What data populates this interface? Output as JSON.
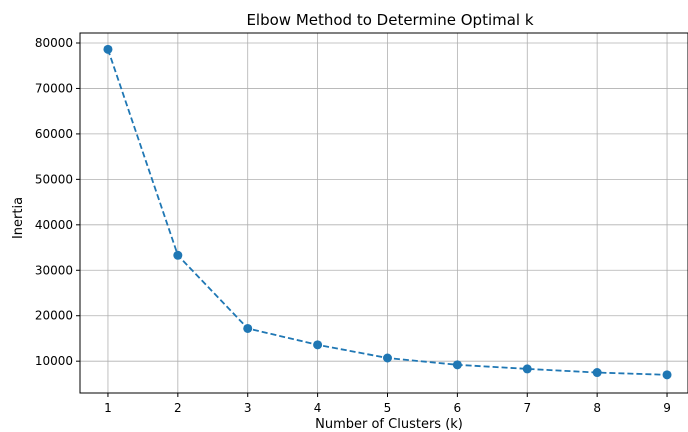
{
  "chart_data": {
    "type": "line",
    "title": "Elbow Method to Determine Optimal k",
    "xlabel": "Number of Clusters (k)",
    "ylabel": "Inertia",
    "x": [
      1,
      2,
      3,
      4,
      5,
      6,
      7,
      8,
      9
    ],
    "series": [
      {
        "values": [
          78600,
          33300,
          17200,
          13600,
          10700,
          9200,
          8300,
          7500,
          7000
        ],
        "color": "#1f77b4",
        "linestyle": "dashed",
        "marker": "circle"
      }
    ],
    "xticks": [
      1,
      2,
      3,
      4,
      5,
      6,
      7,
      8,
      9
    ],
    "yticks": [
      10000,
      20000,
      30000,
      40000,
      50000,
      60000,
      70000,
      80000
    ],
    "xlim": [
      0.6,
      9.3
    ],
    "ylim": [
      3000,
      82200
    ],
    "grid": true,
    "legend": "none"
  }
}
